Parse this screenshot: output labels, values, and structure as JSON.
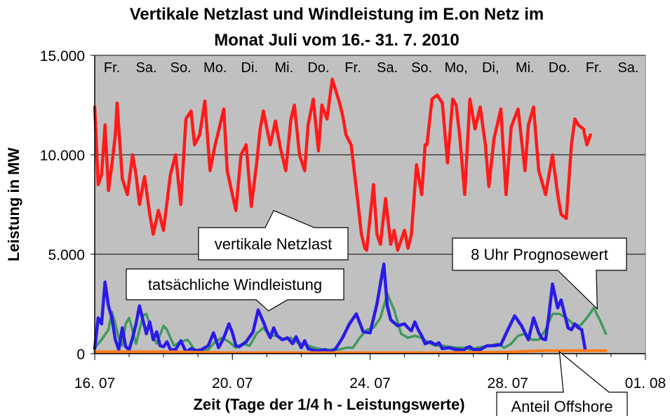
{
  "chart_data": {
    "type": "line",
    "title_lines": [
      "Vertikale Netzlast und Windleistung im E.on Netz im",
      "Monat Juli vom 16.- 31. 7. 2010"
    ],
    "xlabel": "Zeit (Tage der 1/4 h - Leistungswerte)",
    "ylabel": "Leistung in MW",
    "xlim": [
      "2010-07-16",
      "2010-08-01"
    ],
    "ylim": [
      0,
      15000
    ],
    "y_ticks": [
      0,
      5000,
      10000,
      15000
    ],
    "y_tick_labels": [
      "0",
      "5.000",
      "10.000",
      "15.000"
    ],
    "x_ticks": [
      "2010-07-16",
      "2010-07-20",
      "2010-07-24",
      "2010-07-28",
      "2010-08-01"
    ],
    "x_tick_labels": [
      "16. 07",
      "20. 07",
      "24. 07",
      "28. 07",
      "01. 08"
    ],
    "day_labels": [
      "Fr.",
      "Sa.",
      "So.",
      "Mo.",
      "Di.",
      "Mi.",
      "Do.",
      "Fr.",
      "Sa.",
      "So.",
      "Mo,",
      "Di,",
      "Mi.",
      "Do.",
      "Fr.",
      "Sa."
    ],
    "grid": "horizontal",
    "colors": {
      "plot_bg": "#c0c0c0",
      "netzlast": "#ff1a1a",
      "wind": "#2a1ae8",
      "prognose": "#3f9a5e",
      "offshore": "#ff7a1a"
    },
    "series": [
      {
        "name": "vertikale Netzlast",
        "x_days": [
          0,
          0.05,
          0.1,
          0.2,
          0.3,
          0.4,
          0.5,
          0.6,
          0.65,
          0.8,
          0.95,
          1.1,
          1.2,
          1.3,
          1.45,
          1.6,
          1.7,
          1.85,
          2.0,
          2.2,
          2.35,
          2.5,
          2.65,
          2.8,
          2.9,
          3.05,
          3.2,
          3.35,
          3.5,
          3.6,
          3.75,
          3.85,
          4.1,
          4.25,
          4.4,
          4.55,
          4.7,
          4.8,
          4.9,
          5.1,
          5.25,
          5.4,
          5.55,
          5.7,
          5.8,
          5.95,
          6.1,
          6.2,
          6.35,
          6.5,
          6.6,
          6.75,
          6.9,
          7.1,
          7.2,
          7.3,
          7.45,
          7.6,
          7.75,
          7.85,
          7.9,
          8.1,
          8.2,
          8.3,
          8.45,
          8.6,
          8.7,
          8.8,
          9.0,
          9.1,
          9.2,
          9.35,
          9.5,
          9.6,
          9.65,
          9.8,
          9.95,
          10.1,
          10.25,
          10.4,
          10.5,
          10.6,
          10.75,
          10.9,
          11.05,
          11.2,
          11.35,
          11.45,
          11.6,
          11.8,
          11.95,
          12.1,
          12.3,
          12.5,
          12.6,
          12.75,
          12.9,
          13.1,
          13.3,
          13.45,
          13.55,
          13.7,
          13.85,
          13.95,
          14.05,
          14.2,
          14.3,
          14.4
        ],
        "values": [
          12400,
          10500,
          8500,
          9000,
          11500,
          8200,
          9500,
          11000,
          12600,
          8800,
          8000,
          10000,
          9000,
          7500,
          8900,
          7000,
          6000,
          7200,
          6200,
          9000,
          10000,
          7500,
          11800,
          12200,
          10500,
          11000,
          12700,
          9200,
          10500,
          11200,
          12300,
          9200,
          7200,
          10000,
          10500,
          7400,
          9500,
          11200,
          12200,
          10500,
          11700,
          10300,
          9200,
          11800,
          12500,
          10000,
          9200,
          11500,
          12800,
          10200,
          12500,
          11800,
          13800,
          12700,
          12000,
          11000,
          10500,
          8300,
          6000,
          5300,
          5200,
          8500,
          6000,
          5500,
          7800,
          5500,
          6200,
          5200,
          6200,
          5300,
          6000,
          9500,
          8000,
          10500,
          10500,
          12800,
          13000,
          12600,
          9600,
          12800,
          12500,
          11000,
          8000,
          12800,
          11300,
          12400,
          10500,
          8400,
          10800,
          12300,
          8000,
          11400,
          12300,
          9200,
          11500,
          12400,
          9200,
          8000,
          10000,
          8000,
          7000,
          6800,
          10500,
          11800,
          11500,
          11300,
          10500,
          11000
        ]
      },
      {
        "name": "tatsächliche Windleistung",
        "x_days": [
          0,
          0.1,
          0.2,
          0.3,
          0.4,
          0.5,
          0.6,
          0.7,
          0.8,
          0.9,
          1.0,
          1.1,
          1.2,
          1.3,
          1.4,
          1.5,
          1.6,
          1.7,
          1.8,
          1.9,
          2.0,
          2.1,
          2.2,
          2.35,
          2.5,
          2.65,
          2.8,
          2.95,
          3.1,
          3.3,
          3.45,
          3.6,
          3.75,
          3.9,
          4.0,
          4.1,
          4.2,
          4.4,
          4.6,
          4.75,
          4.9,
          5.0,
          5.1,
          5.2,
          5.3,
          5.45,
          5.6,
          5.75,
          5.85,
          6.0,
          6.1,
          6.2,
          6.3,
          6.4,
          6.55,
          6.7,
          6.85,
          7.0,
          7.2,
          7.4,
          7.6,
          7.8,
          8.0,
          8.2,
          8.4,
          8.5,
          8.6,
          8.8,
          9.0,
          9.1,
          9.2,
          9.3,
          9.4,
          9.5,
          9.6,
          9.75,
          9.9,
          10.0,
          10.1,
          10.3,
          10.5,
          10.6,
          10.7,
          10.8,
          10.9,
          11.0,
          11.2,
          11.4,
          11.6,
          11.8,
          12.0,
          12.2,
          12.4,
          12.6,
          12.75,
          12.9,
          13.0,
          13.1,
          13.2,
          13.3,
          13.45,
          13.55,
          13.65,
          13.75,
          13.85,
          13.95,
          14.05,
          14.15,
          14.25
        ],
        "values": [
          250,
          1800,
          1500,
          3600,
          2400,
          1800,
          700,
          200,
          1300,
          350,
          200,
          800,
          1500,
          2400,
          1700,
          1000,
          1600,
          700,
          1100,
          400,
          350,
          600,
          200,
          200,
          650,
          100,
          250,
          150,
          200,
          400,
          1050,
          300,
          800,
          1500,
          1050,
          400,
          350,
          600,
          1100,
          2200,
          1600,
          1150,
          800,
          1300,
          900,
          700,
          800,
          500,
          850,
          300,
          650,
          250,
          200,
          150,
          150,
          200,
          100,
          250,
          800,
          1500,
          2000,
          1100,
          1050,
          2500,
          4500,
          2400,
          1700,
          1400,
          1500,
          1300,
          1150,
          1600,
          1200,
          900,
          500,
          600,
          450,
          550,
          250,
          300,
          200,
          200,
          150,
          300,
          350,
          200,
          200,
          400,
          400,
          450,
          1200,
          1900,
          1400,
          700,
          1800,
          1050,
          750,
          700,
          2000,
          3500,
          2300,
          2700,
          2000,
          1300,
          1200,
          1500,
          1300,
          1200,
          200
        ]
      },
      {
        "name": "8 Uhr Prognosewert",
        "x_days": [
          0,
          0.2,
          0.4,
          0.5,
          0.6,
          0.7,
          0.8,
          0.9,
          1.0,
          1.2,
          1.4,
          1.5,
          1.7,
          1.8,
          2.0,
          2.1,
          2.3,
          2.5,
          2.7,
          2.9,
          3.1,
          3.3,
          3.5,
          3.7,
          3.9,
          4.1,
          4.3,
          4.5,
          4.7,
          4.9,
          5.1,
          5.3,
          5.5,
          5.7,
          5.9,
          6.1,
          6.3,
          6.5,
          6.7,
          6.9,
          7.1,
          7.3,
          7.5,
          7.7,
          7.9,
          8.1,
          8.3,
          8.5,
          8.7,
          8.9,
          9.1,
          9.3,
          9.5,
          9.7,
          9.9,
          10.1,
          10.3,
          10.5,
          10.7,
          10.9,
          11.1,
          11.3,
          11.5,
          11.7,
          11.9,
          12.1,
          12.3,
          12.5,
          12.7,
          12.9,
          13.1,
          13.3,
          13.5,
          13.7,
          13.9,
          14.1,
          14.3,
          14.5,
          14.7,
          14.85
        ],
        "values": [
          300,
          700,
          1200,
          2100,
          1500,
          800,
          400,
          1500,
          1800,
          500,
          1900,
          2000,
          900,
          500,
          1400,
          1200,
          400,
          600,
          700,
          200,
          150,
          200,
          600,
          800,
          600,
          300,
          500,
          400,
          1000,
          1300,
          900,
          900,
          700,
          800,
          550,
          450,
          350,
          250,
          200,
          200,
          200,
          300,
          300,
          800,
          1200,
          1300,
          1800,
          3000,
          2200,
          1000,
          800,
          900,
          800,
          550,
          400,
          400,
          350,
          300,
          300,
          200,
          300,
          350,
          400,
          500,
          300,
          500,
          900,
          1000,
          700,
          700,
          1200,
          2000,
          2000,
          1800,
          1500,
          1400,
          1800,
          2300,
          1600,
          1000
        ]
      },
      {
        "name": "Anteil Offshore",
        "x_days": [
          0,
          2,
          4,
          6,
          8,
          10,
          12,
          13,
          14,
          14.85
        ],
        "values": [
          100,
          100,
          50,
          50,
          50,
          50,
          80,
          150,
          150,
          150
        ]
      }
    ],
    "annotations": [
      {
        "text": "vertikale Netzlast",
        "series": "vertikale Netzlast",
        "target": [
          5.2,
          7200
        ]
      },
      {
        "text": "tatsächliche Windleistung",
        "series": "tatsächliche Windleistung",
        "target": [
          5.05,
          2150
        ]
      },
      {
        "text": "8 Uhr Prognosewert",
        "series": "8 Uhr Prognosewert",
        "target": [
          14.6,
          2250
        ]
      },
      {
        "text": "Anteil Offshore",
        "series": "Anteil Offshore",
        "target": [
          13.5,
          100
        ]
      }
    ]
  }
}
